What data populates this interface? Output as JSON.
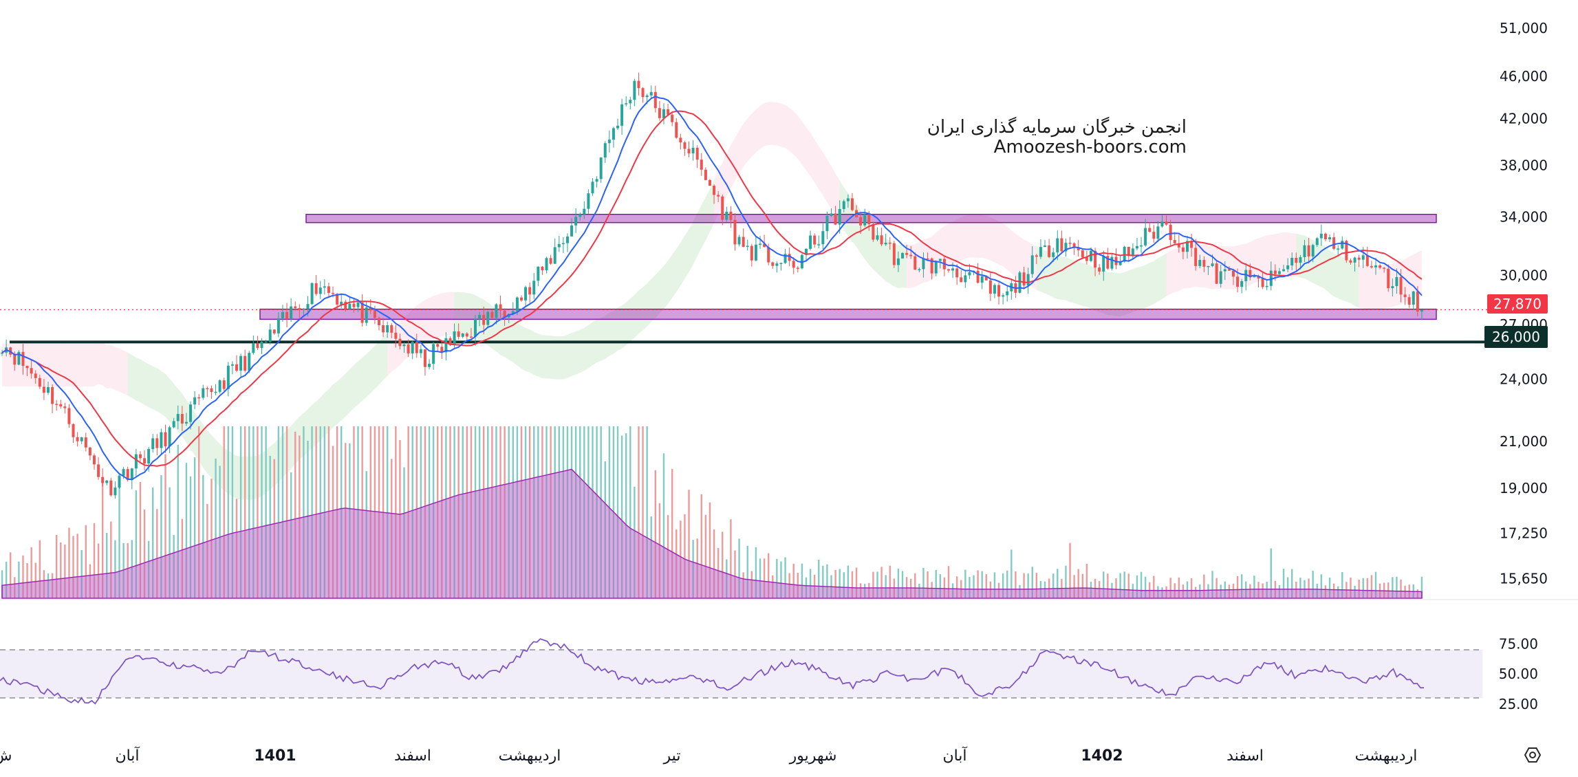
{
  "watermark": {
    "line1": "انجمن خبرگان سرمایه گذاری ایران",
    "line2": "Amoozesh-boors.com"
  },
  "price_axis": {
    "ticks": [
      "51,000",
      "46,000",
      "42,000",
      "38,000",
      "34,000",
      "30,000",
      "27,000",
      "24,000",
      "21,000",
      "19,000",
      "17,250",
      "15,650"
    ]
  },
  "rsi_axis": {
    "ticks": [
      "75.00",
      "50.00",
      "25.00"
    ]
  },
  "badges": {
    "last_price": "27,870",
    "support": "26,000"
  },
  "time_axis": {
    "labels": [
      "ش",
      "آبان",
      "1401",
      "اسفند",
      "اردیبهشت",
      "تیر",
      "شهریور",
      "آبان",
      "1402",
      "اسفند",
      "اردیبهشت"
    ]
  },
  "colors": {
    "up": "#26a69a",
    "down": "#ef5350",
    "ma_fast": "#2962ff",
    "ma_slow": "#f23645",
    "zone": "#9c27b0",
    "volume_ma": "#ba68c8",
    "rsi": "#7e57c2",
    "support": "#0b2f2a"
  },
  "icons": {
    "corner": "settings-hex-icon"
  },
  "chart_data": [
    {
      "type": "candlestick",
      "title": "",
      "scale": "log",
      "ylim": [
        15000,
        53000
      ],
      "x": "trading days (Jalali calendar), approx. 1400/7 to 1402/2",
      "close": [
        26000,
        23000,
        19000,
        21000,
        23500,
        26000,
        29500,
        27200,
        25000,
        27000,
        29000,
        34500,
        45500,
        39500,
        32000,
        30500,
        35000,
        31000,
        30500,
        28500,
        32500,
        30500,
        33500,
        30000,
        29500,
        32500,
        30500,
        27900
      ],
      "zones": [
        {
          "name": "resistance",
          "from": 33600,
          "to": 34200
        },
        {
          "name": "support",
          "from": 27300,
          "to": 27900
        }
      ],
      "horizontal_line": 26000,
      "last_price": 27870,
      "overlays": [
        "moving-average fast (blue)",
        "moving-average slow (red)",
        "ichimoku cloud"
      ]
    },
    {
      "type": "volume",
      "relative_values": [
        0.1,
        0.15,
        0.2,
        0.35,
        0.5,
        0.6,
        0.7,
        0.65,
        0.8,
        0.9,
        1.0,
        0.55,
        0.3,
        0.15,
        0.1,
        0.08,
        0.08,
        0.07,
        0.07,
        0.08,
        0.06,
        0.06,
        0.07,
        0.07,
        0.06,
        0.05
      ]
    },
    {
      "type": "line",
      "name": "RSI",
      "ylim": [
        10,
        90
      ],
      "guides": [
        30,
        70
      ],
      "y": [
        45,
        40,
        30,
        25,
        65,
        60,
        55,
        50,
        70,
        62,
        55,
        45,
        40,
        55,
        60,
        45,
        55,
        80,
        70,
        52,
        45,
        42,
        48,
        38,
        50,
        60,
        52,
        40,
        50,
        45,
        55,
        32,
        42,
        68,
        62,
        55,
        40,
        32,
        50,
        42,
        60,
        48,
        55,
        42,
        52,
        40
      ]
    }
  ]
}
